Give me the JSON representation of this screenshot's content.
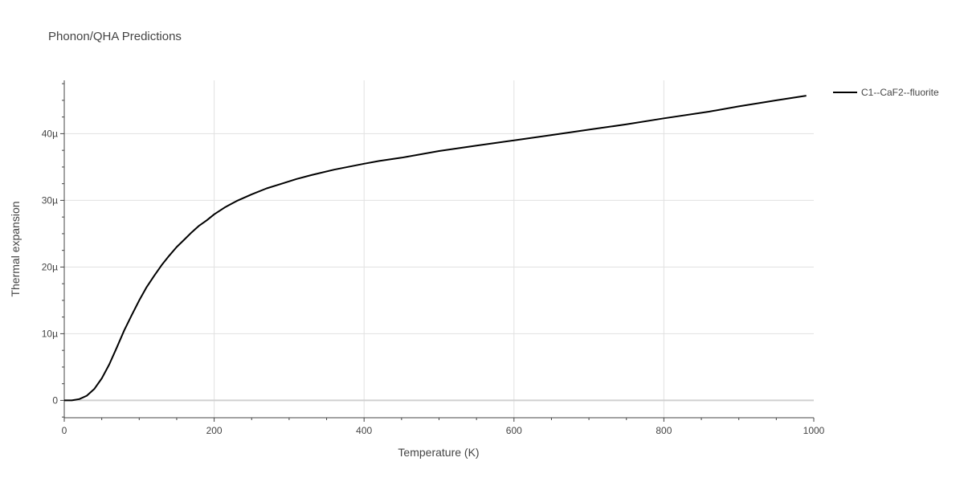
{
  "chart_data": {
    "type": "line",
    "title": "Phonon/QHA Predictions",
    "xlabel": "Temperature (K)",
    "ylabel": "Thermal expansion",
    "xlim": [
      0,
      1000
    ],
    "ylim": [
      -2.6e-06,
      4.8e-05
    ],
    "x_ticks": [
      0,
      200,
      400,
      600,
      800,
      1000
    ],
    "x_tick_labels": [
      "0",
      "200",
      "400",
      "600",
      "800",
      "1000"
    ],
    "y_ticks": [
      0,
      1e-05,
      2e-05,
      3e-05,
      4e-05
    ],
    "y_tick_labels": [
      "0",
      "10µ",
      "20µ",
      "30µ",
      "40µ"
    ],
    "grid": true,
    "legend_position": "top-right",
    "series": [
      {
        "name": "C1--CaF2--fluorite",
        "color": "#000000",
        "x": [
          0,
          10,
          20,
          30,
          40,
          50,
          60,
          70,
          80,
          90,
          100,
          110,
          120,
          130,
          140,
          150,
          160,
          170,
          180,
          190,
          200,
          215,
          230,
          250,
          270,
          290,
          310,
          330,
          360,
          400,
          420,
          450,
          500,
          550,
          600,
          650,
          700,
          750,
          800,
          860,
          900,
          950,
          990
        ],
        "y": [
          0,
          0.0,
          2e-07,
          7e-07,
          1.7e-06,
          3.3e-06,
          5.4e-06,
          7.9e-06,
          1.05e-05,
          1.28e-05,
          1.5e-05,
          1.7e-05,
          1.87e-05,
          2.03e-05,
          2.17e-05,
          2.3e-05,
          2.41e-05,
          2.52e-05,
          2.62e-05,
          2.7e-05,
          2.79e-05,
          2.9e-05,
          2.99e-05,
          3.09e-05,
          3.18e-05,
          3.25e-05,
          3.32e-05,
          3.38e-05,
          3.46e-05,
          3.55e-05,
          3.59e-05,
          3.64e-05,
          3.74e-05,
          3.82e-05,
          3.9e-05,
          3.98e-05,
          4.06e-05,
          4.14e-05,
          4.23e-05,
          4.33e-05,
          4.41e-05,
          4.5e-05,
          4.57e-05
        ]
      }
    ]
  }
}
